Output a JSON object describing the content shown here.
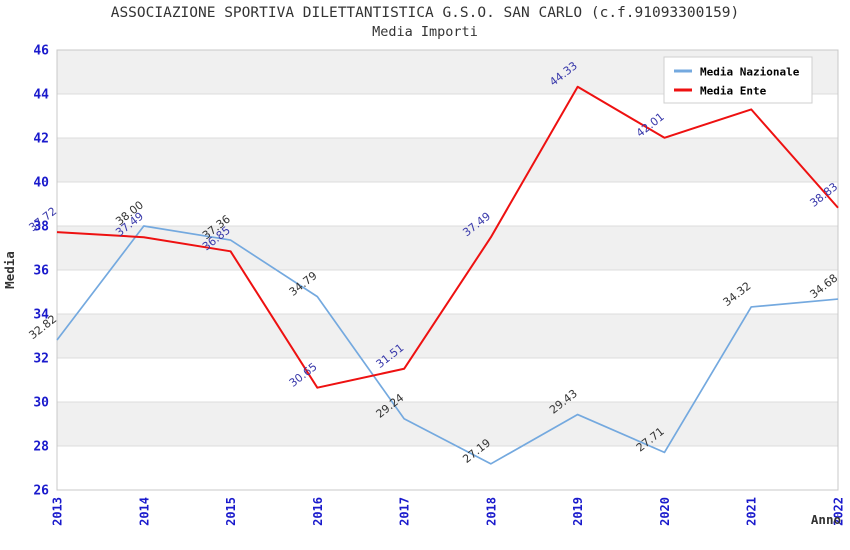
{
  "page": {
    "title": "ASSOCIAZIONE SPORTIVA DILETTANTISTICA G.S.O. SAN CARLO (c.f.91093300159)",
    "subtitle": "Media Importi"
  },
  "chart_data": {
    "type": "line",
    "title": "ASSOCIAZIONE SPORTIVA DILETTANTISTICA G.S.O. SAN CARLO (c.f.91093300159)",
    "subtitle": "Media Importi",
    "xlabel": "Anno",
    "ylabel": "Media",
    "x": [
      "2013",
      "2014",
      "2015",
      "2016",
      "2017",
      "2018",
      "2019",
      "2020",
      "2021",
      "2022"
    ],
    "ylim": [
      26,
      46
    ],
    "ytick_step": 2,
    "yticks": [
      46,
      44,
      42,
      40,
      38,
      36,
      34,
      32,
      30,
      28,
      26
    ],
    "grid": "horizontal gridlines with alternating gray/white bands",
    "legend_position": "top-right inside plot",
    "series": [
      {
        "name": "Media Nazionale",
        "color": "#74A9DF",
        "label_color": "#333333",
        "values": [
          32.82,
          38.0,
          37.36,
          34.79,
          29.24,
          27.19,
          29.43,
          27.71,
          34.32,
          34.68
        ],
        "labels": [
          "32.82",
          "38.00",
          "37.36",
          "34.79",
          "29.24",
          "27.19",
          "29.43",
          "27.71",
          "34.32",
          "34.68"
        ]
      },
      {
        "name": "Media Ente",
        "color": "#EE1111",
        "label_color": "#3838AA",
        "values": [
          37.72,
          37.49,
          36.85,
          30.65,
          31.51,
          37.49,
          44.33,
          42.01,
          43.3,
          38.83
        ],
        "labels": [
          "37.72",
          "37.49",
          "36.85",
          "30.65",
          "31.51",
          "37.49",
          "44.33",
          "42.01",
          null,
          "38.83"
        ],
        "note_values": "2021 value estimated from line position; its label is hidden behind the legend box"
      }
    ],
    "colors": {
      "axis_tick_labels": "#1A1ACC",
      "axis_titles": "#333333",
      "band_gray": "#F0F0F0",
      "band_white": "#FFFFFF",
      "gridline": "#DDDDDD",
      "plot_border": "#C8C8C8",
      "legend_border": "#CFCFCF",
      "legend_bg": "#FFFFFF",
      "title_text": "#333333"
    }
  }
}
